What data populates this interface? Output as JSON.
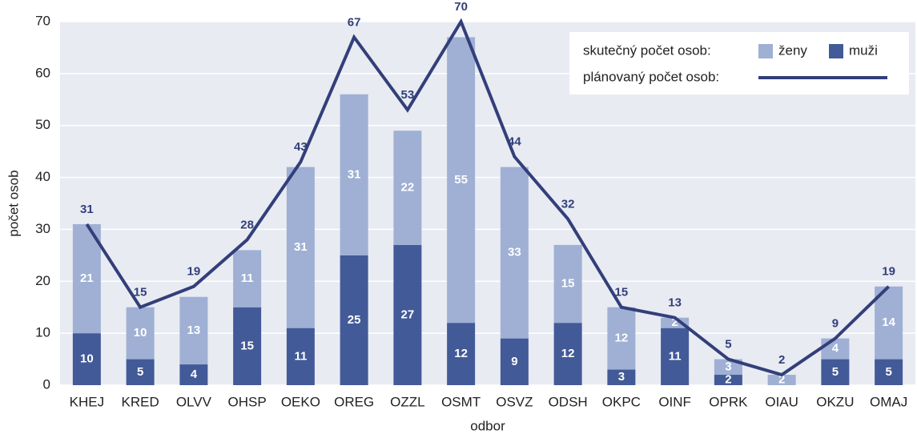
{
  "chart_data": {
    "type": "bar",
    "x_label": "odbor",
    "y_label": "počet osob",
    "categories": [
      "KHEJ",
      "KRED",
      "OLVV",
      "OHSP",
      "OEKO",
      "OREG",
      "OZZL",
      "OSMT",
      "OSVZ",
      "ODSH",
      "OKPC",
      "OINF",
      "OPRK",
      "OIAU",
      "OKZU",
      "OMAJ"
    ],
    "legend_group_label": "skutečný počet osob:",
    "series": [
      {
        "name": "muži",
        "type": "bar",
        "color": "#435a98",
        "values": [
          10,
          5,
          4,
          15,
          11,
          25,
          27,
          12,
          9,
          12,
          3,
          11,
          2,
          null,
          5,
          5
        ]
      },
      {
        "name": "ženy",
        "type": "bar",
        "color": "#9fb0d4",
        "values": [
          21,
          10,
          13,
          11,
          31,
          31,
          22,
          55,
          33,
          15,
          12,
          2,
          3,
          2,
          4,
          14
        ]
      },
      {
        "name": "plánovaný počet osob:",
        "type": "line",
        "color": "#333f7a",
        "values": [
          31,
          15,
          19,
          28,
          43,
          67,
          53,
          70,
          44,
          32,
          15,
          13,
          5,
          2,
          9,
          19
        ]
      }
    ],
    "stacked": true,
    "ylim": [
      0,
      70
    ],
    "yticks": [
      0,
      10,
      20,
      30,
      40,
      50,
      60,
      70
    ],
    "grid": true,
    "legend": "upper right"
  }
}
